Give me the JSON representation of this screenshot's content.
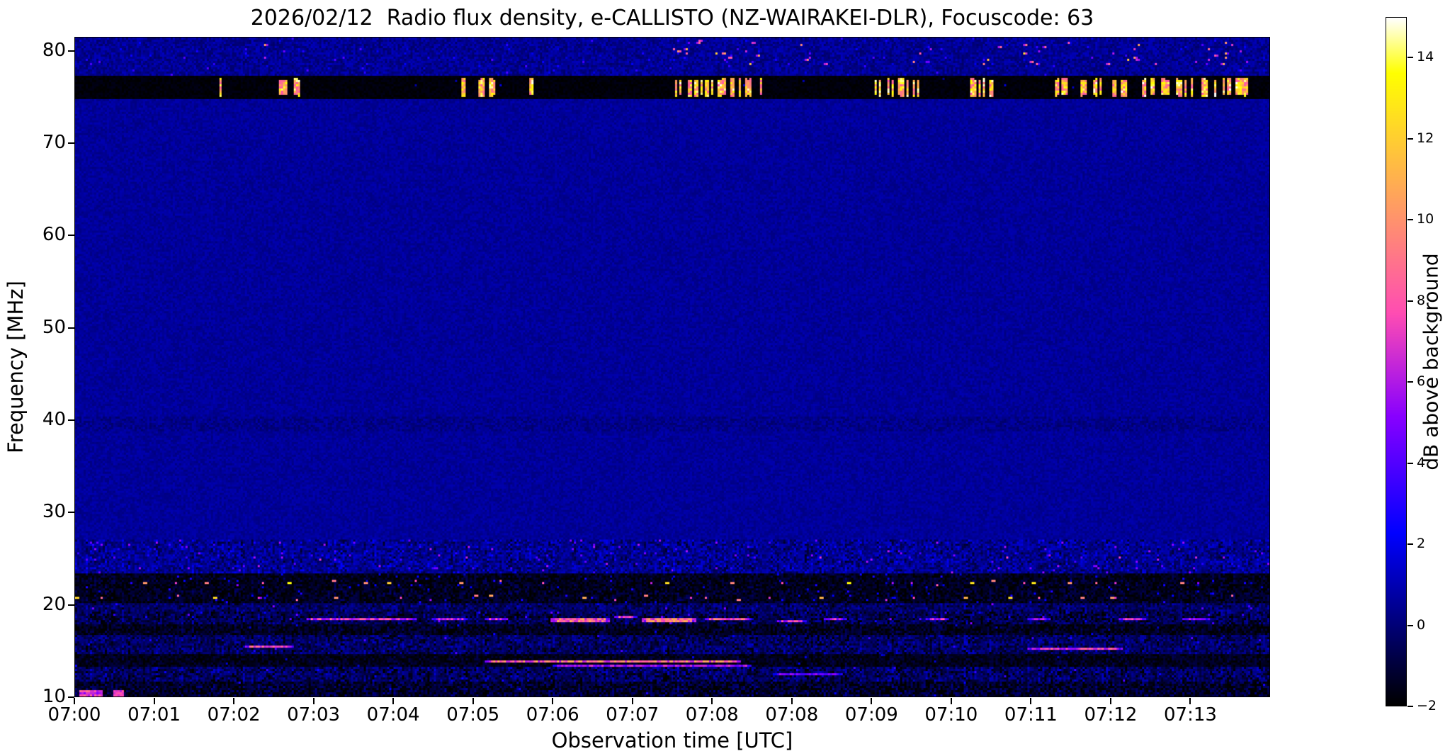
{
  "chart_data": {
    "type": "heatmap",
    "title": "2026/02/12  Radio flux density, e-CALLISTO (NZ-WAIRAKEI-DLR), Focuscode: 63",
    "xlabel": "Observation time [UTC]",
    "ylabel": "Frequency [MHz]",
    "x_tick_labels": [
      "07:00",
      "07:01",
      "07:02",
      "07:03",
      "07:04",
      "07:05",
      "07:06",
      "07:07",
      "07:08",
      "07:08",
      "07:09",
      "07:10",
      "07:11",
      "07:12",
      "07:13"
    ],
    "y_range": [
      10,
      81.5
    ],
    "y_ticks": [
      80,
      70,
      60,
      50,
      40,
      30,
      20,
      10
    ],
    "grid": false,
    "colorbar": {
      "label": "dB above background",
      "range": [
        -2,
        15
      ],
      "ticks": [
        14,
        12,
        10,
        8,
        6,
        4,
        2,
        0,
        -2
      ],
      "colormap": "gnuplot2"
    },
    "background_level_db": 0.55,
    "features": [
      {
        "type": "band",
        "f0": 10,
        "f1": 81.5,
        "base": 0.55,
        "amp": 0.4,
        "spike_p": 0,
        "sv0": 0,
        "sv1": 0,
        "colmod": false
      },
      {
        "type": "band",
        "f0": 38.9,
        "f1": 40.3,
        "base": 0.3,
        "amp": 0.55,
        "spike_p": 0,
        "sv0": 0,
        "sv1": 0,
        "colmod": false
      },
      {
        "type": "band",
        "f0": 77.3,
        "f1": 81.5,
        "base": 0.45,
        "amp": 0.75,
        "spike_p": 0.012,
        "sv0": 1.5,
        "sv1": 4,
        "colmod": false
      },
      {
        "type": "specks",
        "f0": 78.6,
        "f1": 81.2,
        "v0": 4,
        "v1": 12,
        "clusters": [
          {
            "x0": 0.155,
            "x1": 0.175,
            "n": 3
          },
          {
            "x0": 0.5,
            "x1": 0.575,
            "n": 16
          },
          {
            "x0": 0.6,
            "x1": 0.635,
            "n": 5
          },
          {
            "x0": 0.695,
            "x1": 0.72,
            "n": 4
          },
          {
            "x0": 0.755,
            "x1": 0.775,
            "n": 3
          },
          {
            "x0": 0.79,
            "x1": 0.835,
            "n": 7
          },
          {
            "x0": 0.845,
            "x1": 0.905,
            "n": 9
          },
          {
            "x0": 0.915,
            "x1": 0.985,
            "n": 12
          }
        ]
      },
      {
        "type": "band",
        "f0": 75.1,
        "f1": 77.3,
        "base": -1.85,
        "amp": 0.25,
        "spike_p": 0.003,
        "sv0": 0.5,
        "sv1": 2,
        "colmod": false
      },
      {
        "type": "bursts",
        "f0": 75.2,
        "f1": 77.2,
        "v0": 8,
        "v1": 15,
        "clusters": [
          {
            "x0": 0.12,
            "x1": 0.125,
            "n": 1
          },
          {
            "x0": 0.166,
            "x1": 0.188,
            "n": 6
          },
          {
            "x0": 0.322,
            "x1": 0.352,
            "n": 9
          },
          {
            "x0": 0.381,
            "x1": 0.392,
            "n": 2
          },
          {
            "x0": 0.503,
            "x1": 0.545,
            "n": 13
          },
          {
            "x0": 0.548,
            "x1": 0.578,
            "n": 8
          },
          {
            "x0": 0.663,
            "x1": 0.706,
            "n": 11
          },
          {
            "x0": 0.744,
            "x1": 0.776,
            "n": 6
          },
          {
            "x0": 0.816,
            "x1": 0.846,
            "n": 8
          },
          {
            "x0": 0.853,
            "x1": 0.882,
            "n": 7
          },
          {
            "x0": 0.886,
            "x1": 0.936,
            "n": 11
          },
          {
            "x0": 0.94,
            "x1": 0.986,
            "n": 10
          }
        ]
      },
      {
        "type": "band",
        "f0": 23.3,
        "f1": 27.0,
        "base": 0.4,
        "amp": 1.0,
        "spike_p": 0.02,
        "sv0": 2,
        "sv1": 6,
        "colmod": true
      },
      {
        "type": "dots",
        "f": 25.1,
        "h": 1,
        "spacing": 0.03,
        "jitter": 0.012,
        "p": 0.5,
        "v0": 3,
        "v1": 8
      },
      {
        "type": "band",
        "f0": 21.6,
        "f1": 23.3,
        "base": -1.55,
        "amp": 0.7,
        "spike_p": 0.015,
        "sv0": 1,
        "sv1": 3,
        "colmod": true
      },
      {
        "type": "dots",
        "f": 22.4,
        "h": 1,
        "spacing": 0.024,
        "jitter": 0.008,
        "p": 0.78,
        "v0": 5,
        "v1": 14
      },
      {
        "type": "band",
        "f0": 20.2,
        "f1": 21.6,
        "base": -1.45,
        "amp": 0.75,
        "spike_p": 0.012,
        "sv0": 1,
        "sv1": 3,
        "colmod": true
      },
      {
        "type": "dots",
        "f": 20.9,
        "h": 1,
        "spacing": 0.027,
        "jitter": 0.01,
        "p": 0.72,
        "v0": 5,
        "v1": 13
      },
      {
        "type": "band",
        "f0": 19.3,
        "f1": 20.2,
        "base": -0.3,
        "amp": 0.9,
        "spike_p": 0.006,
        "sv0": 2,
        "sv1": 5,
        "colmod": true
      },
      {
        "type": "band",
        "f0": 17.8,
        "f1": 19.3,
        "base": -0.7,
        "amp": 1.1,
        "spike_p": 0.008,
        "sv0": 2,
        "sv1": 5,
        "colmod": true
      },
      {
        "type": "band",
        "f0": 16.6,
        "f1": 17.8,
        "base": -1.5,
        "amp": 0.8,
        "spike_p": 0.004,
        "sv0": 1,
        "sv1": 2.5,
        "colmod": true
      },
      {
        "type": "band",
        "f0": 14.6,
        "f1": 16.6,
        "base": -0.35,
        "amp": 1.05,
        "spike_p": 0.004,
        "sv0": 2,
        "sv1": 4,
        "colmod": true
      },
      {
        "type": "band",
        "f0": 13.2,
        "f1": 14.6,
        "base": -1.55,
        "amp": 0.6,
        "spike_p": 0.003,
        "sv0": 1,
        "sv1": 2.5,
        "colmod": true
      },
      {
        "type": "band",
        "f0": 11.7,
        "f1": 13.2,
        "base": -0.45,
        "amp": 1.15,
        "spike_p": 0.005,
        "sv0": 2,
        "sv1": 4,
        "colmod": true
      },
      {
        "type": "band",
        "f0": 10.0,
        "f1": 11.7,
        "base": -1.25,
        "amp": 1.05,
        "spike_p": 0.003,
        "sv0": 1.5,
        "sv1": 3,
        "colmod": true
      },
      {
        "type": "streak",
        "f": 18.55,
        "x0": 0.195,
        "x1": 0.285,
        "v": 7,
        "h": 1
      },
      {
        "type": "streak",
        "f": 18.4,
        "x0": 0.3,
        "x1": 0.327,
        "v": 6,
        "h": 1
      },
      {
        "type": "streak",
        "f": 18.6,
        "x0": 0.344,
        "x1": 0.362,
        "v": 6.5,
        "h": 1
      },
      {
        "type": "streak",
        "f": 18.45,
        "x0": 0.398,
        "x1": 0.447,
        "v": 8.5,
        "h": 2
      },
      {
        "type": "streak",
        "f": 18.7,
        "x0": 0.452,
        "x1": 0.47,
        "v": 7,
        "h": 1
      },
      {
        "type": "streak",
        "f": 18.4,
        "x0": 0.476,
        "x1": 0.52,
        "v": 9,
        "h": 2
      },
      {
        "type": "streak",
        "f": 18.55,
        "x0": 0.529,
        "x1": 0.566,
        "v": 8,
        "h": 1
      },
      {
        "type": "streak",
        "f": 18.3,
        "x0": 0.588,
        "x1": 0.612,
        "v": 6.5,
        "h": 1
      },
      {
        "type": "streak",
        "f": 18.5,
        "x0": 0.628,
        "x1": 0.646,
        "v": 6,
        "h": 1
      },
      {
        "type": "streak",
        "f": 18.6,
        "x0": 0.714,
        "x1": 0.731,
        "v": 6,
        "h": 1
      },
      {
        "type": "streak",
        "f": 18.45,
        "x0": 0.798,
        "x1": 0.816,
        "v": 6,
        "h": 1
      },
      {
        "type": "streak",
        "f": 18.55,
        "x0": 0.874,
        "x1": 0.896,
        "v": 6.5,
        "h": 1
      },
      {
        "type": "streak",
        "f": 18.4,
        "x0": 0.928,
        "x1": 0.95,
        "v": 6,
        "h": 1
      },
      {
        "type": "streak",
        "f": 15.45,
        "x0": 0.143,
        "x1": 0.182,
        "v": 7.5,
        "h": 1
      },
      {
        "type": "streak",
        "f": 15.35,
        "x0": 0.798,
        "x1": 0.876,
        "v": 7,
        "h": 1
      },
      {
        "type": "streak",
        "f": 13.95,
        "x0": 0.344,
        "x1": 0.556,
        "v": 8.5,
        "h": 1
      },
      {
        "type": "streak",
        "f": 13.55,
        "x0": 0.4,
        "x1": 0.566,
        "v": 5.5,
        "h": 1
      },
      {
        "type": "streak",
        "f": 12.55,
        "x0": 0.585,
        "x1": 0.642,
        "v": 4.5,
        "h": 1
      },
      {
        "type": "blob",
        "f0": 10.1,
        "f1": 10.7,
        "x0": 0.004,
        "x1": 0.022,
        "v0": 5,
        "v1": 9
      },
      {
        "type": "blob",
        "f0": 10.3,
        "f1": 10.6,
        "x0": 0.033,
        "x1": 0.04,
        "v0": 6,
        "v1": 8
      }
    ]
  }
}
